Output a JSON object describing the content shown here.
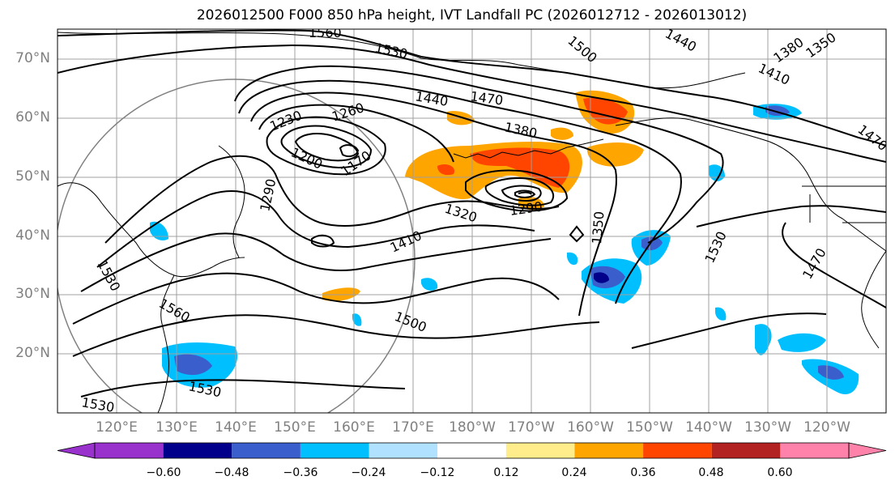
{
  "title": "2026012500 F000 850 hPa height, IVT Landfall PC (2026012712 - 2026013012)",
  "lat_labels": [
    "70°N",
    "60°N",
    "50°N",
    "40°N",
    "30°N",
    "20°N"
  ],
  "lon_labels": [
    "120°E",
    "130°E",
    "140°E",
    "150°E",
    "160°E",
    "170°E",
    "180°W",
    "170°W",
    "160°W",
    "150°W",
    "140°W",
    "130°W",
    "120°W"
  ],
  "contour_labels": [
    "1560",
    "1530",
    "1500",
    "1440",
    "1470",
    "1380",
    "1230",
    "1260",
    "1200",
    "1170",
    "1290",
    "1320",
    "1290",
    "1410",
    "1350",
    "1530",
    "1470",
    "1440",
    "1410",
    "1380",
    "1350",
    "1560",
    "1530",
    "1530",
    "1500",
    "1470",
    "1530"
  ],
  "colorbar": {
    "ticks": [
      "−0.60",
      "−0.48",
      "−0.36",
      "−0.24",
      "−0.12",
      "0.12",
      "0.24",
      "0.36",
      "0.48",
      "0.60"
    ],
    "colors": [
      "#9932cc",
      "#00008b",
      "#3a5fcd",
      "#00bfff",
      "#b0e2ff",
      "#ffffff",
      "#ffec8b",
      "#ffa500",
      "#ff4500",
      "#b22222",
      "#ff82ab"
    ]
  },
  "chart_data": {
    "type": "map",
    "title": "2026012500 F000 850 hPa height, IVT Landfall PC (2026012712 - 2026013012)",
    "field": "850 hPa geopotential height contours with IVT landfall PC shading",
    "lon_range": [
      "115°E",
      "115°W"
    ],
    "lat_range": [
      10,
      75
    ],
    "contour_interval": 30,
    "low_centers": [
      {
        "lat": 53,
        "lon": 160,
        "min_label": 1170
      },
      {
        "lat": 47,
        "lon": -172,
        "min_label": 1290
      }
    ],
    "shading_levels": [
      -0.6,
      -0.48,
      -0.36,
      -0.24,
      -0.12,
      0.12,
      0.24,
      0.36,
      0.48,
      0.6
    ]
  }
}
